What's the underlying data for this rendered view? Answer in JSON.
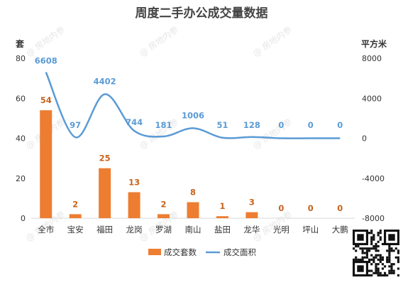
{
  "chart_data": {
    "type": "bar+line",
    "title": "周度二手办公成交量数据",
    "categories": [
      "全市",
      "宝安",
      "福田",
      "龙岗",
      "罗湖",
      "南山",
      "盐田",
      "龙华",
      "光明",
      "坪山",
      "大鹏"
    ],
    "series": [
      {
        "name": "成交套数",
        "type": "bar",
        "axis": "left",
        "color": "#ed7d31",
        "values": [
          54,
          2,
          25,
          13,
          2,
          8,
          1,
          3,
          0,
          0,
          0
        ]
      },
      {
        "name": "成交面积",
        "type": "line",
        "axis": "right",
        "color": "#5b9bd5",
        "values": [
          6608,
          97,
          4402,
          744,
          181,
          1006,
          51,
          128,
          0,
          0,
          0
        ]
      }
    ],
    "left_axis": {
      "unit": "套",
      "ylim": [
        0,
        80
      ],
      "ticks": [
        0,
        20,
        40,
        60,
        80
      ]
    },
    "right_axis": {
      "unit": "平方米",
      "ylim": [
        -8000,
        8000
      ],
      "ticks": [
        -8000,
        -4000,
        0,
        4000,
        8000
      ]
    },
    "legend_position": "bottom",
    "grid": false
  },
  "watermark": "房地内参"
}
